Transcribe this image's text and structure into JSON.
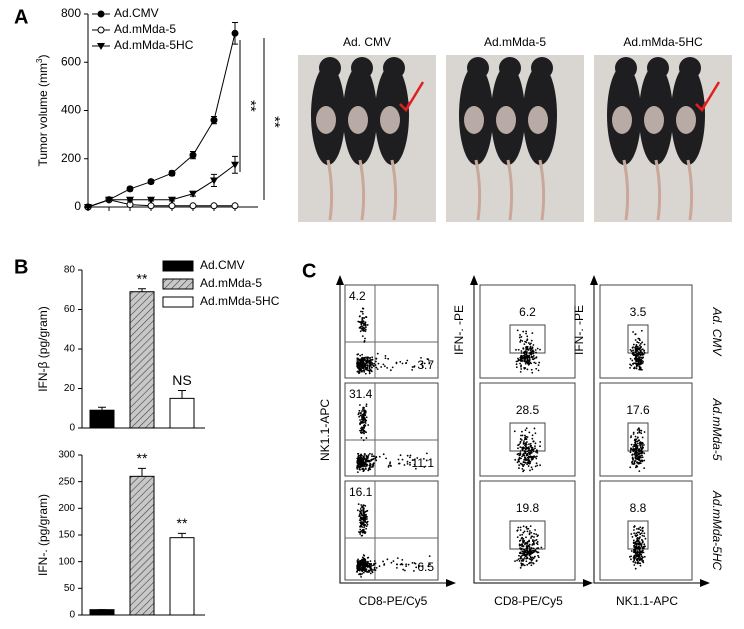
{
  "panels": [
    "A",
    "B",
    "C"
  ],
  "chart_data": [
    {
      "type": "line",
      "ylabel": [
        "Tumor volume (mm",
        "3",
        ")"
      ],
      "categories": [
        null,
        null,
        null,
        null,
        null,
        null,
        null,
        null
      ],
      "ylim": [
        0,
        800
      ],
      "yticks": [
        0,
        200,
        400,
        600,
        800
      ],
      "series": [
        {
          "name": "Ad.CMV",
          "color": "#000000",
          "marker": "circle",
          "values": [
            0,
            30,
            75,
            105,
            140,
            215,
            360,
            720
          ],
          "errors": [
            2,
            5,
            8,
            8,
            10,
            15,
            15,
            45
          ]
        },
        {
          "name": "Ad.mMda-5",
          "color": "#000000",
          "marker": "open-circle",
          "values": [
            0,
            30,
            10,
            5,
            5,
            5,
            5,
            5
          ],
          "errors": [
            2,
            5,
            3,
            2,
            2,
            2,
            2,
            3
          ]
        },
        {
          "name": "Ad.mMda-5HC",
          "color": "#000000",
          "marker": "triangle-down",
          "values": [
            0,
            30,
            30,
            30,
            30,
            55,
            110,
            175
          ],
          "errors": [
            2,
            5,
            5,
            5,
            5,
            10,
            25,
            35
          ]
        }
      ],
      "annotations": [
        "**",
        "**"
      ]
    },
    {
      "type": "bar",
      "ylabel": "IFN-β (pg/gram)",
      "categories": [
        null,
        null,
        null
      ],
      "values": [
        9,
        69,
        15
      ],
      "errors": [
        1.5,
        1.5,
        4
      ],
      "fills": [
        "#000000",
        "#c8c8c8",
        "#ffffff"
      ],
      "hatch": [
        false,
        true,
        false
      ],
      "legend": [
        "Ad.CMV",
        "Ad.mMda-5",
        "Ad.mMda-5HC"
      ],
      "value_labels": [
        null,
        "**",
        "NS"
      ],
      "ylim": [
        0,
        80
      ],
      "yticks": [
        0,
        20,
        40,
        60,
        80
      ]
    },
    {
      "type": "bar",
      "ylabel": "IFN-. (pg/gram)",
      "categories": [
        null,
        null,
        null
      ],
      "values": [
        10,
        260,
        145
      ],
      "errors": [
        0,
        15,
        8
      ],
      "fills": [
        "#000000",
        "#c8c8c8",
        "#ffffff"
      ],
      "hatch": [
        false,
        true,
        false
      ],
      "value_labels": [
        null,
        "**",
        "**"
      ],
      "ylim": [
        0,
        300
      ],
      "yticks": [
        0,
        50,
        100,
        150,
        200,
        250,
        300
      ]
    }
  ],
  "photos": [
    "Ad. CMV",
    "Ad.mMda-5",
    "Ad.mMda-5HC"
  ],
  "flow": {
    "rows": [
      "Ad. CMV",
      "Ad.mMda-5",
      "Ad.mMda-5HC"
    ],
    "columns": [
      {
        "ylabel": "NK1.1-APC",
        "xlabel": "CD8-PE/Cy5",
        "gates": [
          [
            4.2,
            3.7
          ],
          [
            31.4,
            11.1
          ],
          [
            16.1,
            6.5
          ]
        ]
      },
      {
        "ylabel": "IFN-. -PE",
        "xlabel": "CD8-PE/Cy5",
        "gates": [
          6.2,
          28.5,
          19.8
        ]
      },
      {
        "ylabel": "IFN-. -PE",
        "xlabel": "NK1.1-APC",
        "gates": [
          3.5,
          17.6,
          8.8
        ]
      }
    ]
  }
}
